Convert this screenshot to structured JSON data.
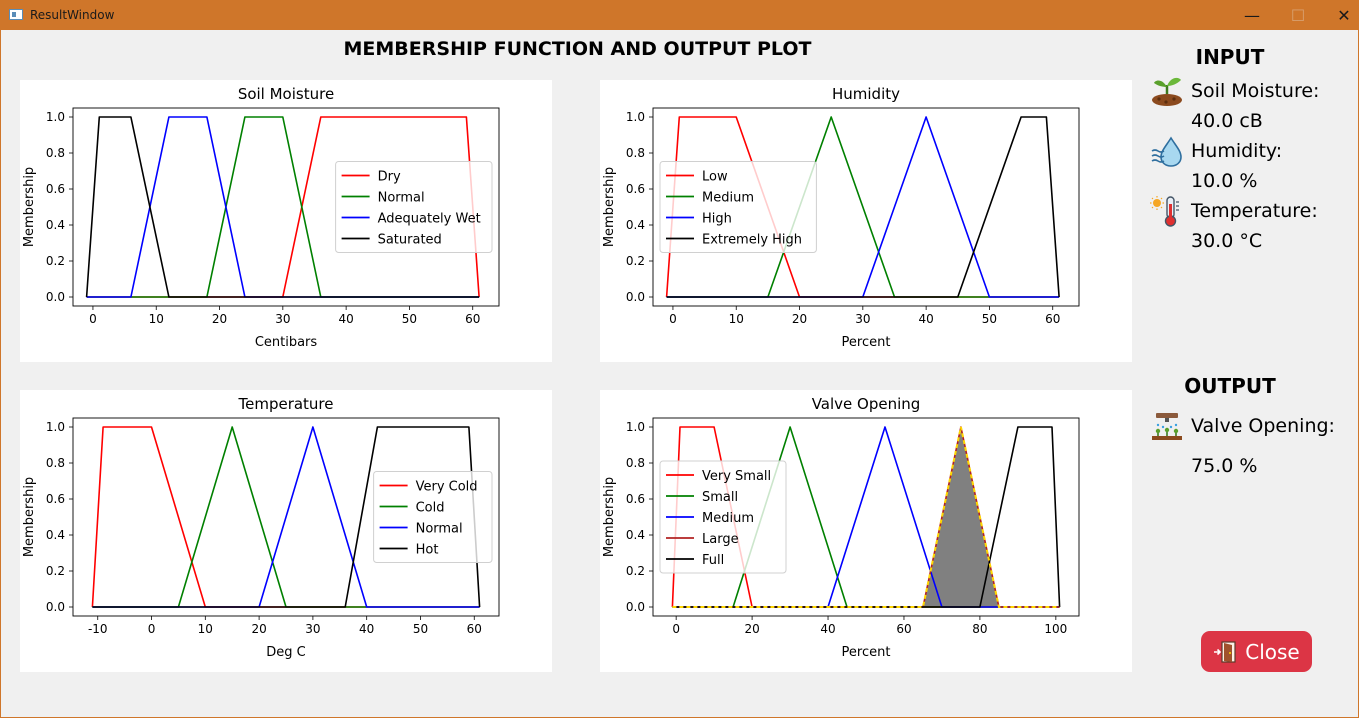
{
  "window": {
    "title": "ResultWindow",
    "minimize": "—",
    "maximize": "☐",
    "close": "✕"
  },
  "page_title": "MEMBERSHIP FUNCTION AND OUTPUT PLOT",
  "input": {
    "header": "INPUT",
    "soil_label": "Soil Moisture:",
    "soil_value": "40.0 cB",
    "humidity_label": "Humidity:",
    "humidity_value": "10.0 %",
    "temperature_label": "Temperature:",
    "temperature_value": "30.0 °C"
  },
  "output": {
    "header": "OUTPUT",
    "valve_label": "Valve Opening:",
    "valve_value": "75.0 %"
  },
  "close_button": {
    "label": "Close"
  },
  "icons": [
    "plant-soil-icon",
    "humidity-drop-icon",
    "thermometer-icon",
    "sprinkler-icon",
    "exit-door-icon"
  ],
  "chart_data": [
    {
      "type": "line",
      "title": "Soil Moisture",
      "xlabel": "Centibars",
      "ylabel": "Membership",
      "xlim": [
        -3.15,
        64.15
      ],
      "ylim": [
        -0.05,
        1.05
      ],
      "xticks": [
        0,
        10,
        20,
        30,
        40,
        50,
        60
      ],
      "yticks": [
        0.0,
        0.2,
        0.4,
        0.6,
        0.8,
        1.0
      ],
      "legend_position": "center-right",
      "series": [
        {
          "name": "Dry",
          "color": "#ff0000",
          "points": [
            [
              -1,
              0
            ],
            [
              30,
              0
            ],
            [
              36,
              1
            ],
            [
              59,
              1
            ],
            [
              61,
              0
            ]
          ]
        },
        {
          "name": "Normal",
          "color": "#008000",
          "points": [
            [
              -1,
              0
            ],
            [
              18,
              0
            ],
            [
              24,
              1
            ],
            [
              30,
              1
            ],
            [
              36,
              0
            ],
            [
              61,
              0
            ]
          ]
        },
        {
          "name": "Adequately Wet",
          "color": "#0000ff",
          "points": [
            [
              -1,
              0
            ],
            [
              6,
              0
            ],
            [
              12,
              1
            ],
            [
              18,
              1
            ],
            [
              24,
              0
            ],
            [
              61,
              0
            ]
          ]
        },
        {
          "name": "Saturated",
          "color": "#000000",
          "points": [
            [
              -1,
              0
            ],
            [
              1,
              1
            ],
            [
              6,
              1
            ],
            [
              12,
              0
            ],
            [
              61,
              0
            ]
          ]
        }
      ]
    },
    {
      "type": "line",
      "title": "Humidity",
      "xlabel": "Percent",
      "ylabel": "Membership",
      "xlim": [
        -3.15,
        64.15
      ],
      "ylim": [
        -0.05,
        1.05
      ],
      "xticks": [
        0,
        10,
        20,
        30,
        40,
        50,
        60
      ],
      "yticks": [
        0.0,
        0.2,
        0.4,
        0.6,
        0.8,
        1.0
      ],
      "legend_position": "center-left",
      "series": [
        {
          "name": "Low",
          "color": "#ff0000",
          "points": [
            [
              -1,
              0
            ],
            [
              1,
              1
            ],
            [
              10,
              1
            ],
            [
              20,
              0
            ],
            [
              61,
              0
            ]
          ]
        },
        {
          "name": "Medium",
          "color": "#008000",
          "points": [
            [
              -1,
              0
            ],
            [
              15,
              0
            ],
            [
              25,
              1
            ],
            [
              35,
              0
            ],
            [
              61,
              0
            ]
          ]
        },
        {
          "name": "High",
          "color": "#0000ff",
          "points": [
            [
              -1,
              0
            ],
            [
              30,
              0
            ],
            [
              40,
              1
            ],
            [
              50,
              0
            ],
            [
              61,
              0
            ]
          ]
        },
        {
          "name": "Extremely High",
          "color": "#000000",
          "points": [
            [
              -1,
              0
            ],
            [
              45,
              0
            ],
            [
              55,
              1
            ],
            [
              59,
              1
            ],
            [
              61,
              0
            ]
          ]
        }
      ]
    },
    {
      "type": "line",
      "title": "Temperature",
      "xlabel": "Deg C",
      "ylabel": "Membership",
      "xlim": [
        -14.6,
        64.6
      ],
      "ylim": [
        -0.05,
        1.05
      ],
      "xticks": [
        -10,
        0,
        10,
        20,
        30,
        40,
        50,
        60
      ],
      "yticks": [
        0.0,
        0.2,
        0.4,
        0.6,
        0.8,
        1.0
      ],
      "legend_position": "center-right",
      "series": [
        {
          "name": "Very Cold",
          "color": "#ff0000",
          "points": [
            [
              -11,
              0
            ],
            [
              -9,
              1
            ],
            [
              0,
              1
            ],
            [
              10,
              0
            ],
            [
              61,
              0
            ]
          ]
        },
        {
          "name": "Cold",
          "color": "#008000",
          "points": [
            [
              -11,
              0
            ],
            [
              5,
              0
            ],
            [
              15,
              1
            ],
            [
              25,
              0
            ],
            [
              61,
              0
            ]
          ]
        },
        {
          "name": "Normal",
          "color": "#0000ff",
          "points": [
            [
              -11,
              0
            ],
            [
              20,
              0
            ],
            [
              30,
              1
            ],
            [
              40,
              0
            ],
            [
              61,
              0
            ]
          ]
        },
        {
          "name": "Hot",
          "color": "#000000",
          "points": [
            [
              -11,
              0
            ],
            [
              36,
              0
            ],
            [
              42,
              1
            ],
            [
              59,
              1
            ],
            [
              61,
              0
            ]
          ]
        }
      ]
    },
    {
      "type": "line",
      "title": "Valve Opening",
      "xlabel": "Percent",
      "ylabel": "Membership",
      "xlim": [
        -6.1,
        106.1
      ],
      "ylim": [
        -0.05,
        1.05
      ],
      "xticks": [
        0,
        20,
        40,
        60,
        80,
        100
      ],
      "yticks": [
        0.0,
        0.2,
        0.4,
        0.6,
        0.8,
        1.0
      ],
      "legend_position": "center-left",
      "series": [
        {
          "name": "Very Small",
          "color": "#ff0000",
          "points": [
            [
              -1,
              0
            ],
            [
              1,
              1
            ],
            [
              10,
              1
            ],
            [
              20,
              0
            ],
            [
              101,
              0
            ]
          ]
        },
        {
          "name": "Small",
          "color": "#008000",
          "points": [
            [
              -1,
              0
            ],
            [
              15,
              0
            ],
            [
              30,
              1
            ],
            [
              45,
              0
            ],
            [
              101,
              0
            ]
          ]
        },
        {
          "name": "Medium",
          "color": "#0000ff",
          "points": [
            [
              -1,
              0
            ],
            [
              40,
              0
            ],
            [
              55,
              1
            ],
            [
              70,
              0
            ],
            [
              101,
              0
            ]
          ]
        },
        {
          "name": "Large",
          "color": "#b22222",
          "points": [
            [
              -1,
              0
            ],
            [
              65,
              0
            ],
            [
              75,
              1
            ],
            [
              85,
              0
            ],
            [
              101,
              0
            ]
          ]
        },
        {
          "name": "Full",
          "color": "#000000",
          "points": [
            [
              -1,
              0
            ],
            [
              80,
              0
            ],
            [
              90,
              1
            ],
            [
              99,
              1
            ],
            [
              101,
              0
            ]
          ]
        }
      ],
      "output_area": {
        "fill_color": "#808080",
        "outline_color": "#ffd700",
        "points": [
          [
            -1,
            0
          ],
          [
            65,
            0
          ],
          [
            75,
            1
          ],
          [
            85,
            0
          ],
          [
            101,
            0
          ]
        ]
      },
      "output_value": 75
    }
  ]
}
